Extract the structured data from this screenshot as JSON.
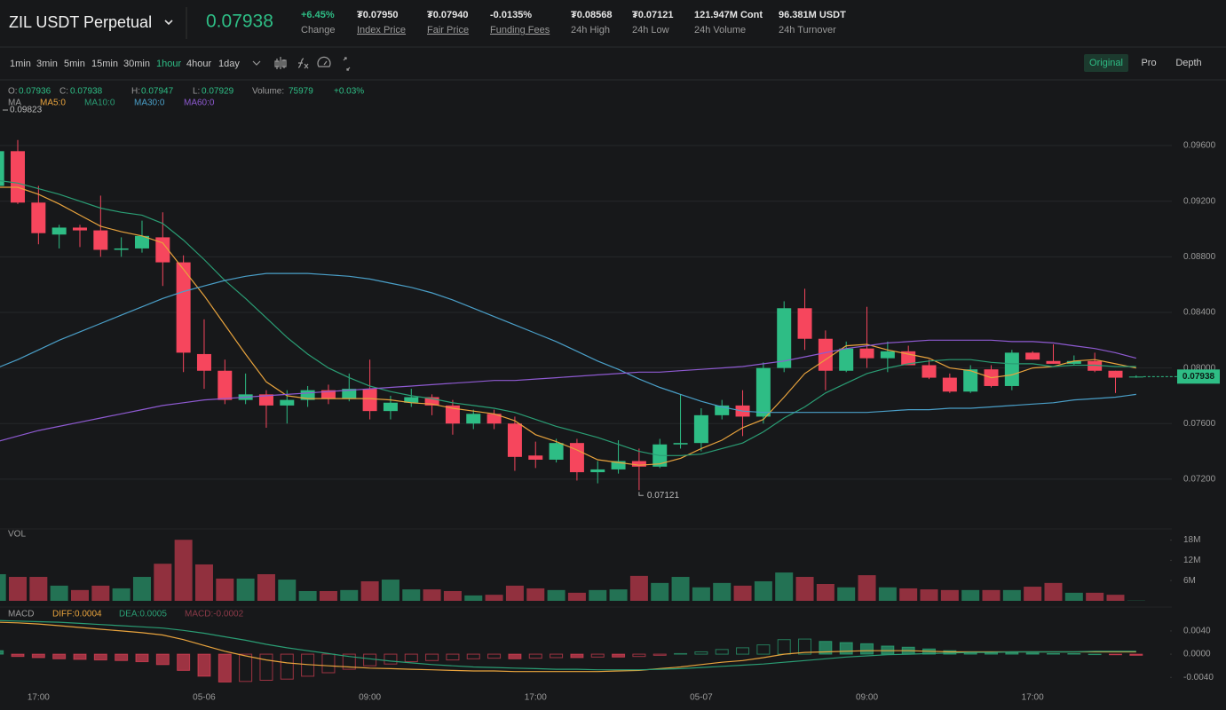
{
  "header": {
    "symbol": "ZIL USDT Perpetual",
    "price": "0.07938",
    "stats": [
      {
        "value": "+6.45%",
        "label": "Change",
        "underline": false
      },
      {
        "value": "₮0.07950",
        "label": "Index Price",
        "underline": true
      },
      {
        "value": "₮0.07940",
        "label": "Fair Price",
        "underline": true
      },
      {
        "value": "-0.0135%",
        "label": "Funding Fees",
        "underline": true
      },
      {
        "value": "₮0.08568",
        "label": "24h High",
        "underline": false
      },
      {
        "value": "₮0.07121",
        "label": "24h Low",
        "underline": false
      },
      {
        "value": "121.947M Cont",
        "label": "24h Volume",
        "underline": false
      },
      {
        "value": "96.381M USDT",
        "label": "24h Turnover",
        "underline": false
      }
    ]
  },
  "toolbar": {
    "intervals": [
      "1min",
      "3min",
      "5min",
      "15min",
      "30min",
      "1hour",
      "4hour",
      "1day"
    ],
    "active_interval": 5,
    "views": [
      "Original",
      "Pro",
      "Depth"
    ],
    "active_view": 0
  },
  "info": {
    "labels": [
      "O:",
      "C:",
      "H:",
      "L:",
      "Volume:"
    ],
    "change": "+0.03%"
  },
  "chart_data": [
    {
      "type": "candlestick",
      "indicator_label": "MA",
      "max_price": 0.09823,
      "grid": true,
      "up_color": "#2ebd85",
      "down_color": "#f6465d",
      "ylim": [
        0.0688,
        0.0976
      ],
      "yticks": [
        {
          "value": 0.072,
          "label": "0.07200"
        },
        {
          "value": 0.076,
          "label": "0.07600"
        },
        {
          "value": 0.08,
          "label": "0.08000"
        },
        {
          "value": 0.084,
          "label": "0.08400"
        },
        {
          "value": 0.088,
          "label": "0.08800"
        },
        {
          "value": 0.092,
          "label": "0.09200"
        },
        {
          "value": 0.096,
          "label": "0.09600"
        }
      ],
      "open": [
        0.0931,
        0.0956,
        0.0919,
        0.0896,
        0.0901,
        0.0899,
        0.0885,
        0.0886,
        0.0894,
        0.0876,
        0.081,
        0.0798,
        0.0777,
        0.0781,
        0.0773,
        0.0777,
        0.0784,
        0.0778,
        0.0785,
        0.0769,
        0.0775,
        0.0779,
        0.0773,
        0.076,
        0.0767,
        0.076,
        0.0737,
        0.0734,
        0.0746,
        0.0725,
        0.0727,
        0.0733,
        0.0729,
        0.0745,
        0.0746,
        0.0766,
        0.0773,
        0.0765,
        0.08,
        0.0843,
        0.0821,
        0.0798,
        0.0814,
        0.0807,
        0.0812,
        0.0802,
        0.0793,
        0.0783,
        0.0799,
        0.0787,
        0.0811,
        0.0805,
        0.0803,
        0.0805,
        0.0798,
        0.07936
      ],
      "high": [
        0.096,
        0.0964,
        0.0931,
        0.0903,
        0.0903,
        0.0924,
        0.0894,
        0.0906,
        0.0912,
        0.0881,
        0.0835,
        0.0806,
        0.0796,
        0.0784,
        0.0784,
        0.0787,
        0.0788,
        0.0796,
        0.0806,
        0.078,
        0.0785,
        0.0781,
        0.0777,
        0.077,
        0.077,
        0.0765,
        0.0747,
        0.0749,
        0.0749,
        0.0733,
        0.0748,
        0.0742,
        0.0749,
        0.0781,
        0.0771,
        0.0777,
        0.0784,
        0.0804,
        0.0848,
        0.0857,
        0.0827,
        0.0819,
        0.0844,
        0.0819,
        0.0816,
        0.0806,
        0.0796,
        0.0802,
        0.0802,
        0.0813,
        0.0812,
        0.0817,
        0.0809,
        0.0811,
        0.0798,
        0.07947
      ],
      "low": [
        0.0929,
        0.0918,
        0.0889,
        0.0886,
        0.0887,
        0.088,
        0.088,
        0.0883,
        0.0859,
        0.0797,
        0.0785,
        0.0774,
        0.0774,
        0.0757,
        0.076,
        0.0772,
        0.0774,
        0.0776,
        0.0763,
        0.0763,
        0.0772,
        0.0766,
        0.0752,
        0.0756,
        0.0756,
        0.0726,
        0.0728,
        0.0732,
        0.0719,
        0.0717,
        0.0724,
        0.07121,
        0.0728,
        0.0742,
        0.074,
        0.0763,
        0.0751,
        0.076,
        0.0797,
        0.0813,
        0.0784,
        0.0797,
        0.08,
        0.0797,
        0.0802,
        0.0792,
        0.0782,
        0.0782,
        0.0786,
        0.0784,
        0.0806,
        0.0803,
        0.0802,
        0.0797,
        0.0782,
        0.07929
      ],
      "close": [
        0.0956,
        0.0919,
        0.0897,
        0.0901,
        0.0899,
        0.0885,
        0.0886,
        0.0895,
        0.0876,
        0.0811,
        0.0798,
        0.0777,
        0.0781,
        0.0773,
        0.0777,
        0.0784,
        0.0778,
        0.0785,
        0.0769,
        0.0775,
        0.0779,
        0.0773,
        0.076,
        0.0767,
        0.076,
        0.0736,
        0.0734,
        0.0746,
        0.0725,
        0.0727,
        0.0733,
        0.0729,
        0.0745,
        0.0746,
        0.0766,
        0.0773,
        0.0765,
        0.08,
        0.0843,
        0.0821,
        0.0798,
        0.0814,
        0.0807,
        0.0812,
        0.0802,
        0.0793,
        0.0783,
        0.0799,
        0.0787,
        0.0811,
        0.0806,
        0.0803,
        0.0805,
        0.0798,
        0.0793,
        0.07938
      ],
      "series": [
        {
          "name": "MA5:0",
          "color": "#e8a33d",
          "values": [
            0.093,
            0.093,
            0.0925,
            0.0918,
            0.091,
            0.0902,
            0.0898,
            0.0895,
            0.089,
            0.0871,
            0.0852,
            0.0831,
            0.081,
            0.079,
            0.078,
            0.0778,
            0.0778,
            0.0778,
            0.0778,
            0.0777,
            0.0775,
            0.0774,
            0.0771,
            0.0769,
            0.0767,
            0.0762,
            0.0752,
            0.0747,
            0.0741,
            0.0734,
            0.0732,
            0.073,
            0.0731,
            0.0735,
            0.0742,
            0.0748,
            0.0757,
            0.0763,
            0.0779,
            0.0796,
            0.0806,
            0.0816,
            0.0817,
            0.0813,
            0.081,
            0.0807,
            0.08,
            0.0798,
            0.0793,
            0.0795,
            0.08,
            0.0801,
            0.0805,
            0.0806,
            0.0803,
            0.08
          ]
        },
        {
          "name": "MA10:0",
          "color": "#2a9d74",
          "values": [
            0.0935,
            0.0933,
            0.0929,
            0.0925,
            0.092,
            0.0915,
            0.0912,
            0.091,
            0.0904,
            0.0892,
            0.0878,
            0.0863,
            0.085,
            0.0836,
            0.0822,
            0.081,
            0.08,
            0.0793,
            0.0787,
            0.0783,
            0.078,
            0.0778,
            0.0775,
            0.0773,
            0.0771,
            0.0768,
            0.0763,
            0.0758,
            0.0754,
            0.075,
            0.0745,
            0.074,
            0.0737,
            0.0737,
            0.0738,
            0.0742,
            0.0746,
            0.0754,
            0.0764,
            0.0772,
            0.0782,
            0.0789,
            0.0796,
            0.08,
            0.0803,
            0.0805,
            0.0806,
            0.0806,
            0.0804,
            0.0803,
            0.0803,
            0.0801,
            0.0802,
            0.0802,
            0.0801,
            0.0801
          ]
        },
        {
          "name": "MA30:0",
          "color": "#4a9fc8",
          "values": [
            0.08,
            0.0806,
            0.0813,
            0.082,
            0.0826,
            0.0832,
            0.0838,
            0.0844,
            0.085,
            0.0855,
            0.0859,
            0.0863,
            0.0866,
            0.0868,
            0.0868,
            0.0868,
            0.0867,
            0.0866,
            0.0864,
            0.0861,
            0.0858,
            0.0854,
            0.0849,
            0.0843,
            0.0837,
            0.0831,
            0.0825,
            0.0819,
            0.0812,
            0.0805,
            0.0799,
            0.0792,
            0.0786,
            0.0781,
            0.0776,
            0.0772,
            0.0769,
            0.0768,
            0.0768,
            0.0768,
            0.0768,
            0.0768,
            0.0768,
            0.0769,
            0.077,
            0.077,
            0.0771,
            0.0771,
            0.0772,
            0.0773,
            0.0774,
            0.0775,
            0.0777,
            0.0778,
            0.0779,
            0.0781
          ]
        },
        {
          "name": "MA60:0",
          "color": "#8e5ad1",
          "values": [
            0.0747,
            0.0751,
            0.0755,
            0.0758,
            0.0761,
            0.0764,
            0.0767,
            0.077,
            0.0773,
            0.0775,
            0.0777,
            0.0778,
            0.0779,
            0.078,
            0.0781,
            0.0782,
            0.0783,
            0.0784,
            0.0785,
            0.0786,
            0.0787,
            0.0788,
            0.0789,
            0.079,
            0.0791,
            0.0791,
            0.0792,
            0.0793,
            0.0794,
            0.0795,
            0.0796,
            0.0797,
            0.0797,
            0.0798,
            0.0799,
            0.08,
            0.0801,
            0.0803,
            0.0805,
            0.0808,
            0.0811,
            0.0814,
            0.0816,
            0.0818,
            0.0819,
            0.082,
            0.082,
            0.082,
            0.082,
            0.0819,
            0.0819,
            0.0818,
            0.0816,
            0.0814,
            0.0811,
            0.0807
          ]
        }
      ]
    },
    {
      "type": "bar",
      "title": "VOL",
      "grid": false,
      "ylim": [
        0,
        20000000
      ],
      "yticks": [
        {
          "value": 6000000,
          "label": "6M"
        },
        {
          "value": 12000000,
          "label": "12M"
        },
        {
          "value": 18000000,
          "label": "18M"
        }
      ],
      "values": [
        7900000,
        7100000,
        7100000,
        4500000,
        3200000,
        4500000,
        3700000,
        7100000,
        11000000,
        18100000,
        10800000,
        6600000,
        6600000,
        7900000,
        6300000,
        2900000,
        2900000,
        3200000,
        5800000,
        6300000,
        3400000,
        3400000,
        2900000,
        1600000,
        1800000,
        4500000,
        3700000,
        3200000,
        2400000,
        3200000,
        3400000,
        7400000,
        5300000,
        7100000,
        4000000,
        5300000,
        4500000,
        5800000,
        8400000,
        7100000,
        5000000,
        4000000,
        7600000,
        4000000,
        3700000,
        3400000,
        3200000,
        3200000,
        3200000,
        3200000,
        4200000,
        5300000,
        2400000,
        2400000,
        1800000,
        75979
      ]
    },
    {
      "type": "macd",
      "title": "MACD",
      "grid": false,
      "ylim": [
        -0.0058,
        0.0072
      ],
      "yticks": [
        {
          "value": -0.004,
          "label": "-0.0040"
        },
        {
          "value": 0,
          "label": "0.0000"
        },
        {
          "value": 0.004,
          "label": "0.0040"
        }
      ],
      "categories": [
        null,
        null,
        "17:00",
        null,
        null,
        null,
        null,
        null,
        null,
        null,
        "05-06",
        null,
        null,
        null,
        null,
        null,
        null,
        null,
        "09:00",
        null,
        null,
        null,
        null,
        null,
        null,
        null,
        "17:00",
        null,
        null,
        null,
        null,
        null,
        null,
        null,
        "05-07",
        null,
        null,
        null,
        null,
        null,
        null,
        null,
        "09:00",
        null,
        null,
        null,
        null,
        null,
        null,
        null,
        "17:00",
        null,
        null,
        null,
        null,
        null
      ],
      "histogram": {
        "name": "MACD:-0.0002",
        "color": "#8a3a48",
        "values": [
          0.0006,
          -0.0004,
          -0.0006,
          -0.0008,
          -0.0009,
          -0.001,
          -0.0011,
          -0.0013,
          -0.0018,
          -0.0028,
          -0.0038,
          -0.0048,
          -0.0047,
          -0.0045,
          -0.0043,
          -0.0038,
          -0.0032,
          -0.0026,
          -0.002,
          -0.0017,
          -0.0013,
          -0.0011,
          -0.001,
          -0.0008,
          -0.0007,
          -0.0008,
          -0.0007,
          -0.0006,
          -0.0006,
          -0.0005,
          -0.0005,
          -0.0004,
          -0.0002,
          0.0001,
          0.0004,
          0.0008,
          0.0011,
          0.0016,
          0.0025,
          0.0026,
          0.0022,
          0.002,
          0.0018,
          0.0014,
          0.0012,
          0.0009,
          0.0006,
          0.0004,
          0.0003,
          0.0003,
          0.0002,
          0.0001,
          0.0001,
          0,
          -0.0001,
          -0.0002
        ]
      },
      "series": [
        {
          "name": "DIFF:0.0004",
          "color": "#e8a33d",
          "values": [
            0.0055,
            0.0054,
            0.0052,
            0.0049,
            0.0046,
            0.0043,
            0.004,
            0.0037,
            0.0033,
            0.0025,
            0.0015,
            0.0005,
            -0.0003,
            -0.001,
            -0.0015,
            -0.0018,
            -0.002,
            -0.0022,
            -0.0024,
            -0.0025,
            -0.0026,
            -0.0027,
            -0.0028,
            -0.0029,
            -0.0029,
            -0.003,
            -0.003,
            -0.003,
            -0.003,
            -0.003,
            -0.0029,
            -0.0028,
            -0.0025,
            -0.0022,
            -0.0018,
            -0.0014,
            -0.0011,
            -0.0006,
            0,
            0.0003,
            0.0004,
            0.0005,
            0.0006,
            0.0006,
            0.0006,
            0.0005,
            0.0004,
            0.0004,
            0.0004,
            0.0004,
            0.0004,
            0.0004,
            0.0004,
            0.0004,
            0.0004,
            0.0004
          ]
        },
        {
          "name": "DEA:0.0005",
          "color": "#2a9d74",
          "values": [
            0.0058,
            0.0057,
            0.0056,
            0.0055,
            0.0053,
            0.0051,
            0.0049,
            0.0047,
            0.0045,
            0.0041,
            0.0036,
            0.003,
            0.0024,
            0.0017,
            0.0011,
            0.0006,
            0.0001,
            -0.0004,
            -0.0008,
            -0.0012,
            -0.0015,
            -0.0018,
            -0.002,
            -0.0022,
            -0.0023,
            -0.0024,
            -0.0025,
            -0.0026,
            -0.0026,
            -0.0027,
            -0.0027,
            -0.0027,
            -0.0026,
            -0.0025,
            -0.0023,
            -0.0021,
            -0.0019,
            -0.0017,
            -0.0014,
            -0.0011,
            -0.0008,
            -0.0005,
            -0.0003,
            -0.0001,
            0,
            0.0001,
            0.0002,
            0.0003,
            0.0003,
            0.0004,
            0.0004,
            0.0004,
            0.0004,
            0.0005,
            0.0005,
            0.0005
          ]
        }
      ]
    }
  ]
}
